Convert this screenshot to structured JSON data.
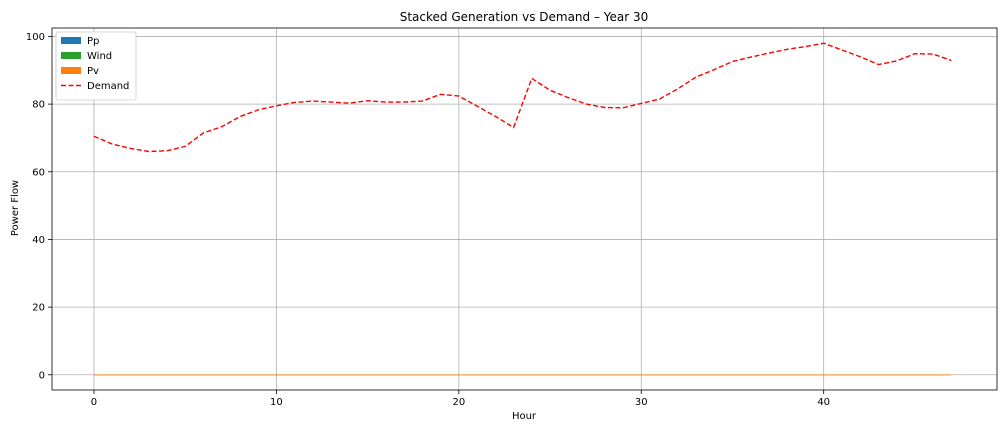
{
  "chart_data": {
    "type": "area",
    "title": "Stacked Generation vs Demand – Year 30",
    "xlabel": "Hour",
    "ylabel": "Power Flow",
    "xlim": [
      -2.3,
      49.5
    ],
    "ylim": [
      -4.5,
      102.5
    ],
    "x_ticks": [
      0,
      10,
      20,
      30,
      40
    ],
    "y_ticks": [
      0,
      20,
      40,
      60,
      80,
      100
    ],
    "grid": true,
    "legend_position": "top-left",
    "x": [
      0,
      1,
      2,
      3,
      4,
      5,
      6,
      7,
      8,
      9,
      10,
      11,
      12,
      13,
      14,
      15,
      16,
      17,
      18,
      19,
      20,
      21,
      22,
      23,
      24,
      25,
      26,
      27,
      28,
      29,
      30,
      31,
      32,
      33,
      34,
      35,
      36,
      37,
      38,
      39,
      40,
      41,
      42,
      43,
      44,
      45,
      46,
      47
    ],
    "series": [
      {
        "name": "Pp",
        "kind": "stack",
        "color": "#1f77b4",
        "values": [
          0,
          0,
          0,
          0,
          0,
          0,
          0,
          0,
          0,
          0,
          0,
          0,
          0,
          0,
          0,
          0,
          0,
          0,
          0,
          0,
          0,
          0,
          0,
          0,
          0,
          0,
          0,
          0,
          0,
          0,
          0,
          0,
          0,
          0,
          0,
          0,
          0,
          0,
          0,
          0,
          0,
          0,
          0,
          0,
          0,
          0,
          0,
          0
        ]
      },
      {
        "name": "Wind",
        "kind": "stack",
        "color": "#2ca02c",
        "values": [
          0,
          0,
          0,
          0,
          0,
          0,
          0,
          0,
          0,
          0,
          0,
          0,
          0,
          0,
          0,
          0,
          0,
          0,
          0,
          0,
          0,
          0,
          0,
          0,
          0,
          0,
          0,
          0,
          0,
          0,
          0,
          0,
          0,
          0,
          0,
          0,
          0,
          0,
          0,
          0,
          0,
          0,
          0,
          0,
          0,
          0,
          0,
          0
        ]
      },
      {
        "name": "Pv",
        "kind": "stack",
        "color": "#ff7f0e",
        "values": [
          0,
          0,
          0,
          0,
          0,
          0,
          0,
          0,
          0,
          0,
          0,
          0,
          0,
          0,
          0,
          0,
          0,
          0,
          0,
          0,
          0,
          0,
          0,
          0,
          0,
          0,
          0,
          0,
          0,
          0,
          0,
          0,
          0,
          0,
          0,
          0,
          0,
          0,
          0,
          0,
          0,
          0,
          0,
          0,
          0,
          0,
          0,
          0
        ]
      },
      {
        "name": "Demand",
        "kind": "line",
        "style": "dashed",
        "color": "#ff0000",
        "values": [
          70.5,
          68.2,
          66.9,
          66.0,
          66.2,
          67.5,
          71.5,
          73.3,
          76.3,
          78.3,
          79.5,
          80.5,
          80.9,
          80.6,
          80.3,
          81.0,
          80.6,
          80.6,
          80.9,
          82.9,
          82.4,
          79.4,
          76.4,
          73.1,
          87.6,
          84.1,
          81.9,
          80.0,
          79.0,
          78.9,
          80.2,
          81.5,
          84.5,
          88.0,
          90.2,
          92.6,
          93.9,
          95.1,
          96.2,
          97.0,
          98.0,
          96.0,
          94.0,
          91.7,
          92.8,
          94.9,
          94.8,
          92.9
        ]
      }
    ]
  }
}
